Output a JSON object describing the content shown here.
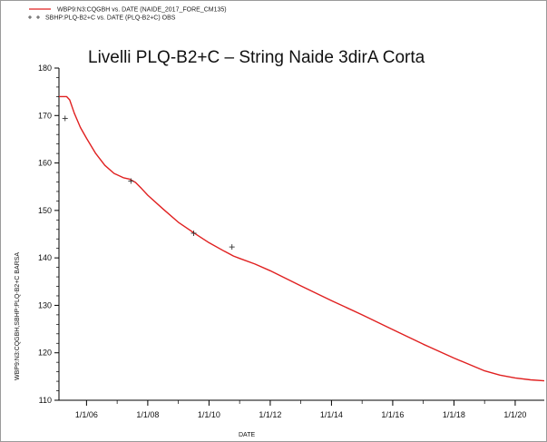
{
  "chart_data": {
    "type": "line",
    "title": "Livelli PLQ-B2+C – String Naide 3dirA Corta",
    "xlabel": "DATE",
    "ylabel": "WBP9:N3:CQGBH,SBHP:PLQ-B2+C   BARSA",
    "xlim": [
      2005.1,
      2020.95
    ],
    "ylim": [
      110,
      180
    ],
    "x_ticks": [
      2006,
      2008,
      2010,
      2012,
      2014,
      2016,
      2018,
      2020
    ],
    "x_tick_labels": [
      "1/1/06",
      "1/1/08",
      "1/1/10",
      "1/1/12",
      "1/1/14",
      "1/1/16",
      "1/1/18",
      "1/1/20"
    ],
    "y_ticks": [
      110,
      120,
      130,
      140,
      150,
      160,
      170,
      180
    ],
    "y_tick_labels": [
      "110",
      "120",
      "130",
      "140",
      "150",
      "160",
      "170",
      "180"
    ],
    "legend_position": "top-left",
    "grid": false,
    "series": [
      {
        "name": "WBP9:N3:CQGBH  vs.  DATE (NAIDE_2017_FORE_CM135)",
        "kind": "line",
        "color": "#e02020",
        "x": [
          2005.1,
          2005.35,
          2005.45,
          2005.6,
          2005.8,
          2006.0,
          2006.3,
          2006.6,
          2006.9,
          2007.2,
          2007.4,
          2007.6,
          2007.8,
          2008.0,
          2008.5,
          2009.0,
          2009.5,
          2010.0,
          2010.5,
          2010.8,
          2011.0,
          2011.5,
          2012.0,
          2013.0,
          2014.0,
          2015.0,
          2016.0,
          2017.0,
          2018.0,
          2019.0,
          2019.5,
          2020.0,
          2020.5,
          2020.95
        ],
        "y": [
          174.0,
          174.0,
          173.3,
          170.5,
          167.5,
          165.2,
          162.0,
          159.5,
          157.8,
          156.9,
          156.6,
          155.9,
          154.6,
          153.2,
          150.3,
          147.5,
          145.3,
          143.2,
          141.4,
          140.4,
          139.9,
          138.7,
          137.3,
          134.1,
          131.0,
          128.0,
          124.9,
          121.8,
          118.9,
          116.2,
          115.3,
          114.7,
          114.3,
          114.1
        ]
      },
      {
        "name": "SBHP:PLQ-B2+C  vs.  DATE (PLQ-B2+C) OBS",
        "kind": "scatter",
        "color": "#333333",
        "x": [
          2005.3,
          2007.45,
          2009.5,
          2010.75
        ],
        "y": [
          169.4,
          156.2,
          145.2,
          142.3
        ]
      }
    ]
  }
}
